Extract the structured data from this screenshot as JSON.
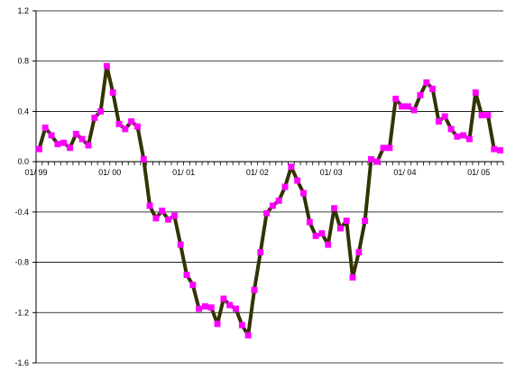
{
  "chart_data": {
    "type": "line",
    "title": "",
    "xlabel": "",
    "ylabel": "",
    "ylim": [
      -1.6,
      1.2
    ],
    "y_ticks": [
      1.2,
      0.8,
      0.4,
      0.0,
      -0.4,
      -0.8,
      -1.2,
      -1.6
    ],
    "y_tick_labels": [
      "1.2",
      "0.8",
      "0.4",
      "0.0",
      "-0.4",
      "-0.8",
      "-1.2",
      "-1.6"
    ],
    "x_tick_labels": [
      "01/ 99",
      "01/ 00",
      "01/ 01",
      "01/ 02",
      "01/ 03",
      "01/ 04",
      "01/ 05"
    ],
    "grid": "horizontal",
    "legend": "none",
    "colors": {
      "line": "#333300",
      "marker": "#ff00ff",
      "grid": "#000000",
      "axis": "#000000"
    },
    "series": [
      {
        "values": [
          0.1,
          0.27,
          0.21,
          0.14,
          0.15,
          0.11,
          0.22,
          0.18,
          0.13,
          0.35,
          0.4,
          0.76,
          0.55,
          0.3,
          0.26,
          0.32,
          0.28,
          0.02,
          -0.35,
          -0.45,
          -0.39,
          -0.46,
          -0.43,
          -0.66,
          -0.9,
          -0.98,
          -1.17,
          -1.15,
          -1.16,
          -1.29,
          -1.09,
          -1.14,
          -1.17,
          -1.3,
          -1.38,
          -1.02,
          -0.72,
          -0.41,
          -0.35,
          -0.31,
          -0.2,
          -0.04,
          -0.15,
          -0.25,
          -0.48,
          -0.59,
          -0.57,
          -0.66,
          -0.37,
          -0.53,
          -0.47,
          -0.92,
          -0.72,
          -0.47,
          0.02,
          0.0,
          0.11,
          0.11,
          0.5,
          0.44,
          0.44,
          0.41,
          0.53,
          0.63,
          0.58,
          0.32,
          0.36,
          0.26,
          0.2,
          0.21,
          0.18,
          0.55,
          0.37,
          0.37,
          0.1,
          0.09
        ]
      }
    ]
  }
}
